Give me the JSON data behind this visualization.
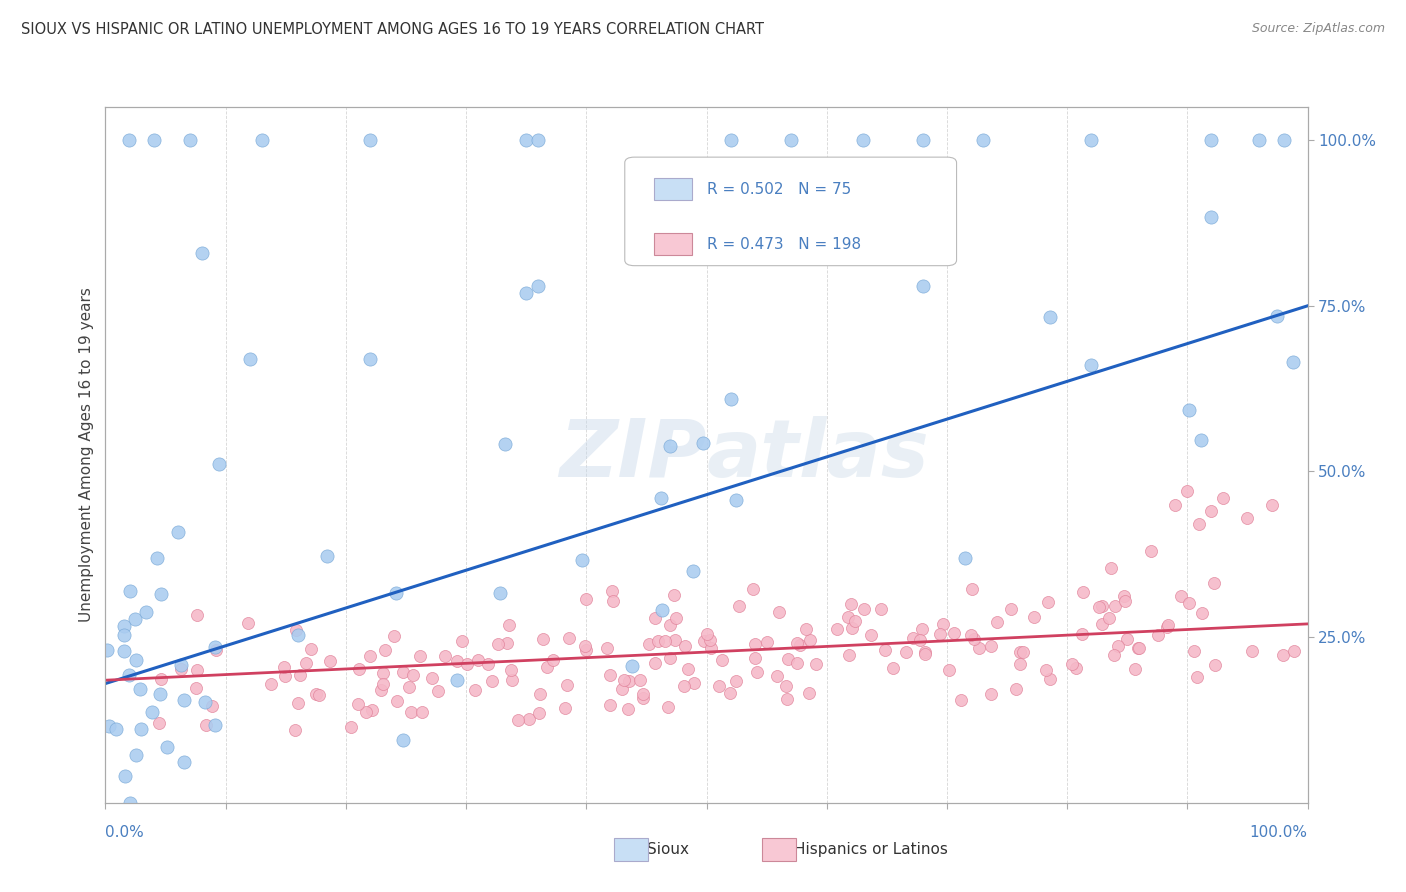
{
  "title": "SIOUX VS HISPANIC OR LATINO UNEMPLOYMENT AMONG AGES 16 TO 19 YEARS CORRELATION CHART",
  "source": "Source: ZipAtlas.com",
  "ylabel": "Unemployment Among Ages 16 to 19 years",
  "ylabel_right_ticks": [
    "100.0%",
    "75.0%",
    "50.0%",
    "25.0%"
  ],
  "ylabel_right_vals": [
    1.0,
    0.75,
    0.5,
    0.25
  ],
  "sioux_color": "#aaccf0",
  "sioux_edge": "#7aaad8",
  "hispanic_color": "#f5b8c8",
  "hispanic_edge": "#e08098",
  "line_sioux": "#2060c0",
  "line_hispanic": "#d04060",
  "legend_box_sioux": "#c8dff5",
  "legend_box_hispanic": "#f8c8d4",
  "sioux_R": "0.502",
  "sioux_N": "75",
  "hispanic_R": "0.473",
  "hispanic_N": "198",
  "background_color": "#ffffff",
  "grid_color": "#cccccc",
  "watermark": "ZIPatlas",
  "watermark_color": "#c8d8ea",
  "title_color": "#333333",
  "axis_label_color": "#4a7fc0",
  "legend_text_color": "#4a7fc0"
}
